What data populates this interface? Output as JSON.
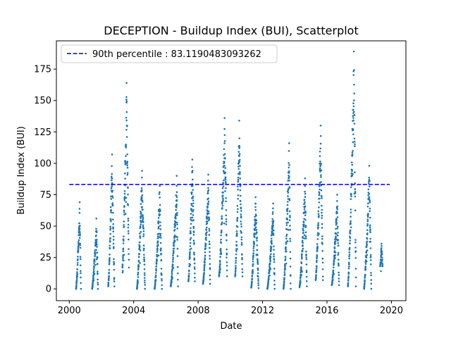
{
  "chart_data": {
    "type": "scatter",
    "title": "DECEPTION - Buildup Index (BUI), Scatterplot",
    "xlabel": "Date",
    "ylabel": "Buildup Index (BUI)",
    "xlim": [
      1999.2,
      2020.9
    ],
    "ylim": [
      -9.4,
      197.5
    ],
    "x_ticks": [
      2000,
      2004,
      2008,
      2012,
      2016,
      2020
    ],
    "y_ticks": [
      0,
      25,
      50,
      75,
      100,
      125,
      150,
      175
    ],
    "grid": false,
    "legend_position": "top-left",
    "reference_line": {
      "label": "90th percentile : 83.1190483093262",
      "value": 83.1190483093262,
      "x_range": [
        2000.0,
        2019.9
      ],
      "color": "#0000bb",
      "style": "dashed"
    },
    "point_color": "#1f77b4",
    "seasons": [
      {
        "year": 2000,
        "start": 2000.42,
        "end": 2000.72,
        "min": 0,
        "peak": 69
      },
      {
        "year": 2001,
        "start": 2001.42,
        "end": 2001.78,
        "min": 0,
        "peak": 56
      },
      {
        "year": 2002,
        "start": 2002.42,
        "end": 2002.8,
        "min": 2,
        "peak": 107
      },
      {
        "year": 2003,
        "start": 2003.3,
        "end": 2003.7,
        "min": 17,
        "peak": 164
      },
      {
        "year": 2004,
        "start": 2004.2,
        "end": 2004.7,
        "min": 0,
        "peak": 94
      },
      {
        "year": 2005,
        "start": 2005.3,
        "end": 2005.75,
        "min": 0,
        "peak": 82
      },
      {
        "year": 2006,
        "start": 2006.3,
        "end": 2006.75,
        "min": 2,
        "peak": 90
      },
      {
        "year": 2007,
        "start": 2007.4,
        "end": 2007.8,
        "min": 6,
        "peak": 103
      },
      {
        "year": 2008,
        "start": 2008.3,
        "end": 2008.75,
        "min": 4,
        "peak": 91
      },
      {
        "year": 2009,
        "start": 2009.3,
        "end": 2009.8,
        "min": 10,
        "peak": 136
      },
      {
        "year": 2010,
        "start": 2010.3,
        "end": 2010.75,
        "min": 10,
        "peak": 134
      },
      {
        "year": 2011,
        "start": 2011.3,
        "end": 2011.75,
        "min": 1,
        "peak": 73
      },
      {
        "year": 2012,
        "start": 2012.3,
        "end": 2012.75,
        "min": 0,
        "peak": 68
      },
      {
        "year": 2013,
        "start": 2013.3,
        "end": 2013.75,
        "min": 0,
        "peak": 116
      },
      {
        "year": 2014,
        "start": 2014.3,
        "end": 2014.75,
        "min": 2,
        "peak": 88
      },
      {
        "year": 2015,
        "start": 2015.3,
        "end": 2015.75,
        "min": 7,
        "peak": 130
      },
      {
        "year": 2016,
        "start": 2016.3,
        "end": 2016.75,
        "min": 3,
        "peak": 75
      },
      {
        "year": 2017,
        "start": 2017.3,
        "end": 2017.8,
        "min": 2,
        "peak": 189
      },
      {
        "year": 2018,
        "start": 2018.3,
        "end": 2018.75,
        "min": 0,
        "peak": 98
      },
      {
        "year": 2019,
        "start": 2019.3,
        "end": 2019.45,
        "min": 18,
        "peak": 36
      }
    ]
  }
}
